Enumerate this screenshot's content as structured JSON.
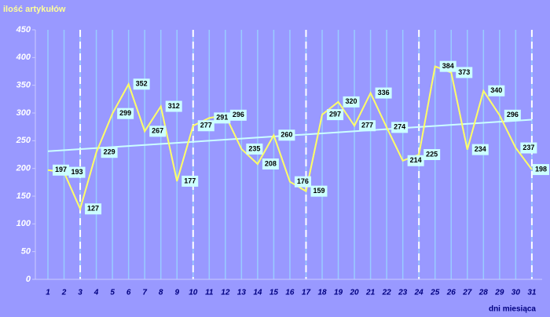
{
  "chart_data": {
    "type": "line",
    "y_axis_label": "ilość artykułów",
    "x_axis_label": "dni miesiąca",
    "x": [
      1,
      2,
      3,
      4,
      5,
      6,
      7,
      8,
      9,
      10,
      11,
      12,
      13,
      14,
      15,
      16,
      17,
      18,
      19,
      20,
      21,
      22,
      23,
      24,
      25,
      26,
      27,
      28,
      29,
      30,
      31
    ],
    "series": [
      {
        "color": "#ffff66",
        "values": [
          197,
          193,
          127,
          229,
          299,
          352,
          267,
          312,
          177,
          277,
          291,
          296,
          235,
          208,
          260,
          176,
          159,
          297,
          320,
          277,
          336,
          274,
          214,
          225,
          384,
          373,
          234,
          340,
          296,
          237,
          198
        ]
      }
    ],
    "trendline": {
      "color": "#ccffff",
      "x": [
        1,
        31
      ],
      "values": [
        231,
        288
      ]
    },
    "highlight_days": [
      3,
      10,
      17,
      24,
      31
    ],
    "ylim": [
      0,
      450
    ],
    "yticks": [
      0,
      50,
      100,
      150,
      200,
      250,
      300,
      350,
      400,
      450
    ]
  }
}
